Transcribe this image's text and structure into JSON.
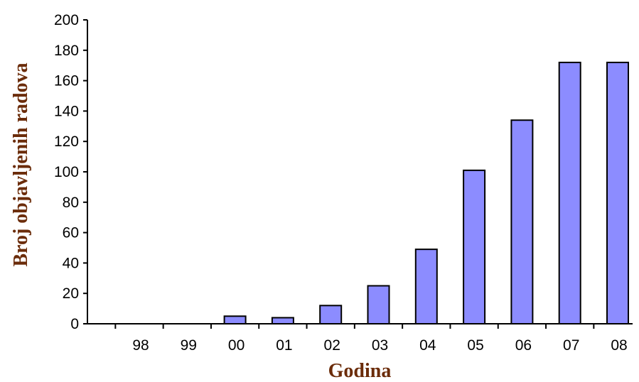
{
  "chart_data": {
    "type": "bar",
    "categories": [
      "98",
      "99",
      "00",
      "01",
      "02",
      "03",
      "04",
      "05",
      "06",
      "07",
      "08"
    ],
    "values": [
      0,
      0,
      5,
      4,
      12,
      25,
      49,
      101,
      134,
      172,
      172
    ],
    "xlabel": "Godina",
    "ylabel": "Broj objavljenih radova",
    "ylim": [
      0,
      200
    ],
    "yticks": [
      "0",
      "20",
      "40",
      "60",
      "80",
      "100",
      "120",
      "140",
      "160",
      "180",
      "200"
    ],
    "grid": false,
    "legend": "none",
    "colors": {
      "bar_fill": "#8c8cff",
      "bar_stroke": "#000000",
      "axis_label": "#6b2c0a"
    }
  }
}
